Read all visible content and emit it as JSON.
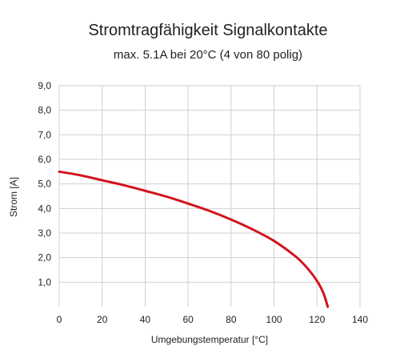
{
  "chart_data": {
    "type": "line",
    "title": "Stromtragfähigkeit Signalkontakte",
    "subtitle": "max. 5.1A bei 20°C (4 von 80 polig)",
    "xlabel": "Umgebungstemperatur [°C]",
    "ylabel": "Strom [A]",
    "xlim": [
      0,
      140
    ],
    "ylim": [
      0,
      9
    ],
    "x_ticks": [
      "0",
      "20",
      "40",
      "60",
      "80",
      "100",
      "120",
      "140"
    ],
    "y_ticks": [
      "",
      "1,0",
      "2,0",
      "3,0",
      "4,0",
      "5,0",
      "6,0",
      "7,0",
      "8,0",
      "9,0"
    ],
    "grid": true,
    "series": [
      {
        "color": "#d2141e",
        "x": [
          0,
          10,
          20,
          30,
          40,
          50,
          60,
          70,
          80,
          90,
          100,
          110,
          115,
          120,
          123,
          125
        ],
        "y": [
          5.5,
          5.35,
          5.15,
          4.95,
          4.72,
          4.48,
          4.2,
          3.9,
          3.55,
          3.15,
          2.68,
          2.05,
          1.62,
          1.05,
          0.55,
          0.0
        ]
      }
    ]
  }
}
